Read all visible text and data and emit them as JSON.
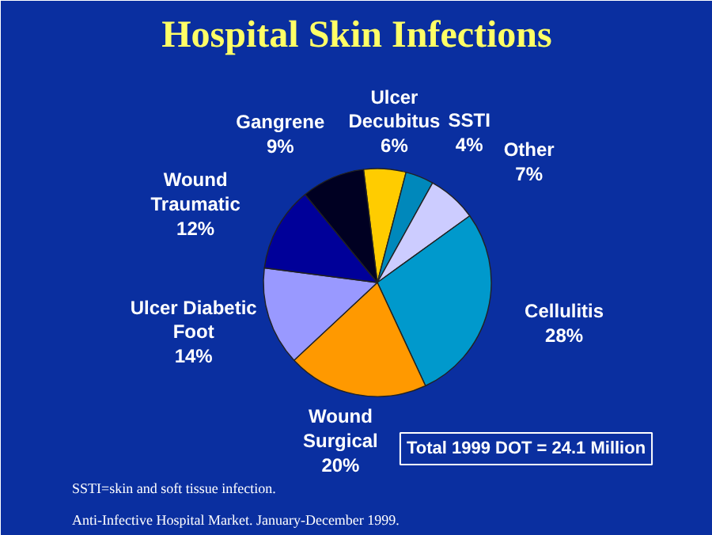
{
  "chart_data": {
    "type": "pie",
    "title": "Hospital Skin Infections",
    "categories": [
      "Ulcer\nDecubitus",
      "SSTI",
      "Other",
      "Cellulitis",
      "Wound\nSurgical",
      "Ulcer Diabetic\nFoot",
      "Wound\nTraumatic",
      "Gangrene"
    ],
    "values": [
      6,
      4,
      7,
      28,
      20,
      14,
      12,
      9
    ],
    "value_labels": [
      "6%",
      "4%",
      "7%",
      "28%",
      "20%",
      "14%",
      "12%",
      "9%"
    ],
    "colors": [
      "#ffcc00",
      "#0088bb",
      "#ccccff",
      "#0099cc",
      "#ff9900",
      "#9999ff",
      "#000099",
      "#000022"
    ],
    "annotations": [
      "Total 1999 DOT = 24.1 Million",
      "SSTI=skin and soft tissue infection.",
      "Anti-Infective Hospital Market. January-December 1999."
    ]
  }
}
